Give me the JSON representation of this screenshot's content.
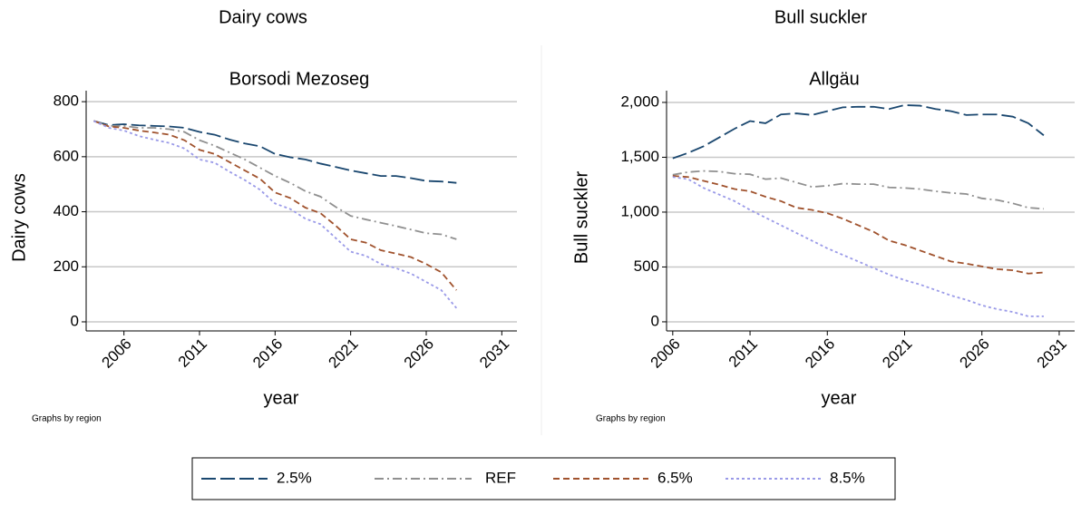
{
  "chart_data": [
    {
      "type": "line",
      "title": "Dairy cows",
      "subtitle": "Borsodi Mezoseg",
      "y_label": "Dairy cows",
      "x_label": "year",
      "note": "Graphs by region",
      "x": [
        2004,
        2005,
        2006,
        2007,
        2008,
        2009,
        2010,
        2011,
        2012,
        2013,
        2014,
        2015,
        2016,
        2017,
        2018,
        2019,
        2020,
        2021,
        2022,
        2023,
        2024,
        2025,
        2026,
        2027,
        2028
      ],
      "xlim": [
        2003.5,
        2032
      ],
      "xticks": [
        2006,
        2011,
        2016,
        2021,
        2026,
        2031
      ],
      "ylim": [
        -33,
        840
      ],
      "yticks": [
        0,
        200,
        400,
        600,
        800
      ],
      "grid": true,
      "series": [
        {
          "name": "2.5%",
          "color": "#1a476f",
          "dash": "long-dash",
          "values": [
            730,
            715,
            718,
            714,
            712,
            710,
            705,
            690,
            680,
            662,
            648,
            638,
            610,
            598,
            590,
            575,
            563,
            550,
            540,
            530,
            530,
            522,
            512,
            510,
            505
          ]
        },
        {
          "name": "REF",
          "color": "#909090",
          "dash": "dash-dot",
          "values": [
            730,
            712,
            712,
            705,
            705,
            700,
            690,
            660,
            640,
            615,
            590,
            560,
            530,
            505,
            475,
            455,
            418,
            385,
            372,
            360,
            348,
            335,
            322,
            318,
            300
          ]
        },
        {
          "name": "6.5%",
          "color": "#a0522d",
          "dash": "dash",
          "values": [
            730,
            710,
            705,
            695,
            688,
            680,
            660,
            625,
            610,
            580,
            550,
            520,
            470,
            450,
            415,
            395,
            350,
            300,
            288,
            260,
            248,
            235,
            210,
            180,
            115
          ]
        },
        {
          "name": "8.5%",
          "color": "#9a9ae8",
          "dash": "short-dash",
          "values": [
            730,
            705,
            695,
            675,
            662,
            650,
            630,
            590,
            578,
            545,
            515,
            480,
            430,
            410,
            375,
            355,
            305,
            255,
            240,
            210,
            195,
            175,
            145,
            115,
            50
          ]
        }
      ]
    },
    {
      "type": "line",
      "title": "Bull suckler",
      "subtitle": "Allgäu",
      "y_label": "Bull suckler",
      "x_label": "year",
      "note": "Graphs by region",
      "x": [
        2006,
        2007,
        2008,
        2009,
        2010,
        2011,
        2012,
        2013,
        2014,
        2015,
        2016,
        2017,
        2018,
        2019,
        2020,
        2021,
        2022,
        2023,
        2024,
        2025,
        2026,
        2027,
        2028,
        2029,
        2030
      ],
      "xlim": [
        2005.6,
        2032
      ],
      "xticks": [
        2006,
        2011,
        2016,
        2021,
        2026,
        2031
      ],
      "ylim": [
        -83,
        2107
      ],
      "yticks": [
        0,
        500,
        {
          "value": 1000,
          "label": "1,000"
        },
        {
          "value": 1500,
          "label": "1,500"
        },
        {
          "value": 2000,
          "label": "2,000"
        }
      ],
      "grid": true,
      "series": [
        {
          "name": "2.5%",
          "color": "#1a476f",
          "dash": "long-dash",
          "values": [
            1490,
            1540,
            1600,
            1680,
            1760,
            1830,
            1810,
            1890,
            1900,
            1885,
            1920,
            1955,
            1960,
            1960,
            1940,
            1975,
            1970,
            1940,
            1920,
            1885,
            1890,
            1890,
            1870,
            1810,
            1700
          ]
        },
        {
          "name": "REF",
          "color": "#909090",
          "dash": "dash-dot",
          "values": [
            1340,
            1365,
            1375,
            1370,
            1350,
            1345,
            1300,
            1310,
            1270,
            1230,
            1240,
            1260,
            1255,
            1255,
            1225,
            1220,
            1210,
            1190,
            1175,
            1165,
            1125,
            1110,
            1080,
            1040,
            1030
          ]
        },
        {
          "name": "6.5%",
          "color": "#a0522d",
          "dash": "dash",
          "values": [
            1330,
            1320,
            1285,
            1250,
            1210,
            1190,
            1140,
            1100,
            1040,
            1020,
            990,
            940,
            880,
            820,
            740,
            700,
            650,
            600,
            550,
            530,
            505,
            480,
            470,
            440,
            450
          ]
        },
        {
          "name": "8.5%",
          "color": "#9a9ae8",
          "dash": "short-dash",
          "values": [
            1320,
            1300,
            1220,
            1160,
            1100,
            1020,
            950,
            880,
            810,
            740,
            670,
            610,
            550,
            490,
            430,
            380,
            340,
            290,
            240,
            200,
            150,
            115,
            90,
            50,
            50
          ]
        }
      ]
    }
  ]
}
